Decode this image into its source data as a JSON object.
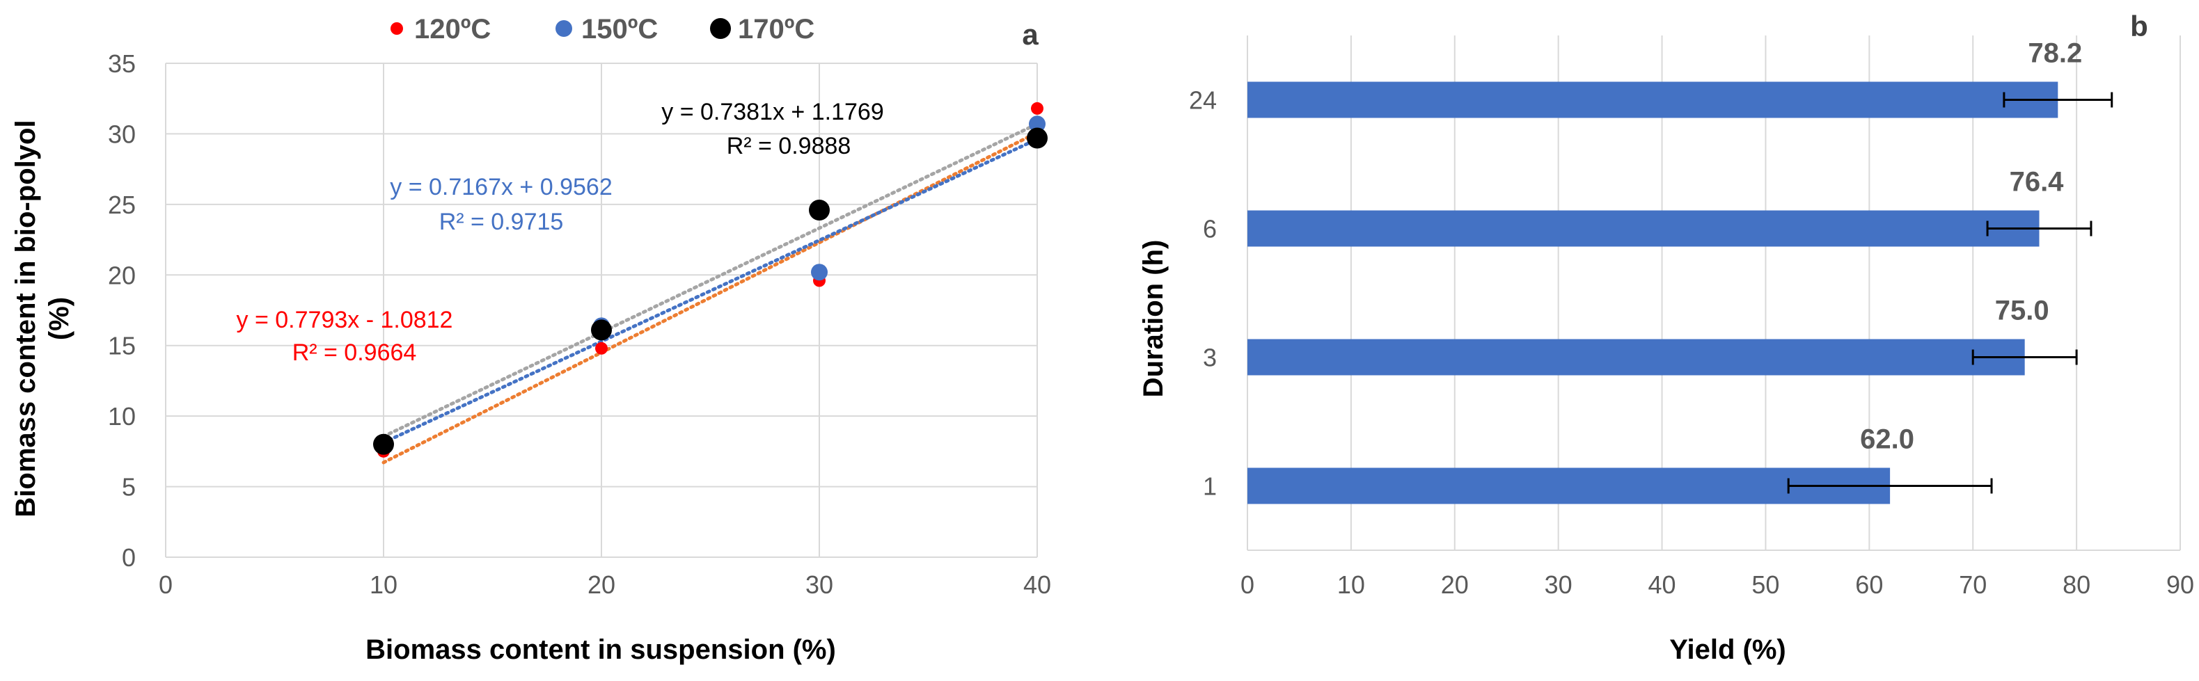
{
  "colors": {
    "red": "#ff0000",
    "blue": "#4472c4",
    "black": "#000000",
    "orange": "#ed7d31",
    "gray": "#a5a5a5",
    "grid": "#d9d9d9",
    "bar": "#4472c4",
    "axis_text": "#595959",
    "title_text": "#404040"
  },
  "chart_data": [
    {
      "panel": "a",
      "type": "scatter",
      "xlabel": "Biomass content in suspension (%)",
      "ylabel_line1": "Biomass  content in  bio-polyol",
      "ylabel_line2": "(%)",
      "xlim": [
        0,
        40
      ],
      "ylim": [
        0,
        35
      ],
      "xticks": [
        0,
        10,
        20,
        30,
        40
      ],
      "yticks": [
        0,
        5,
        10,
        15,
        20,
        25,
        30,
        35
      ],
      "grid": true,
      "legend_position": "top",
      "series": [
        {
          "name": "120ºC",
          "color": "red",
          "marker": "small",
          "x": [
            10,
            20,
            30,
            40
          ],
          "y": [
            7.5,
            14.8,
            19.6,
            31.8
          ],
          "trendline": {
            "slope": 0.7793,
            "intercept": -1.0812,
            "color": "orange"
          },
          "equation": "y = 0.7793x - 1.0812",
          "r2": "R² = 0.9664"
        },
        {
          "name": "150ºC",
          "color": "blue",
          "marker": "medium",
          "x": [
            10,
            20,
            30,
            40
          ],
          "y": [
            7.9,
            16.4,
            20.2,
            30.7
          ],
          "trendline": {
            "slope": 0.7167,
            "intercept": 0.9562,
            "color": "blue"
          },
          "equation": "y = 0.7167x + 0.9562",
          "r2": "R² = 0.9715"
        },
        {
          "name": "170ºC",
          "color": "black",
          "marker": "large",
          "x": [
            10,
            20,
            30,
            40
          ],
          "y": [
            8.0,
            16.1,
            24.6,
            29.7
          ],
          "trendline": {
            "slope": 0.7381,
            "intercept": 1.1769,
            "color": "gray"
          },
          "equation": "y = 0.7381x + 1.1769",
          "r2": "R² = 0.9888"
        }
      ]
    },
    {
      "panel": "b",
      "type": "bar",
      "orientation": "horizontal",
      "xlabel": "Yield (%)",
      "ylabel": "Duration (h)",
      "xlim": [
        0,
        90
      ],
      "xticks": [
        0,
        10,
        20,
        30,
        40,
        50,
        60,
        70,
        80,
        90
      ],
      "grid": true,
      "categories": [
        "1",
        "3",
        "6",
        "24"
      ],
      "values": [
        62.0,
        75.0,
        76.4,
        78.2
      ],
      "data_labels": [
        "62.0",
        "75.0",
        "76.4",
        "78.2"
      ],
      "error": [
        9.8,
        5.0,
        5.0,
        5.2
      ]
    }
  ]
}
